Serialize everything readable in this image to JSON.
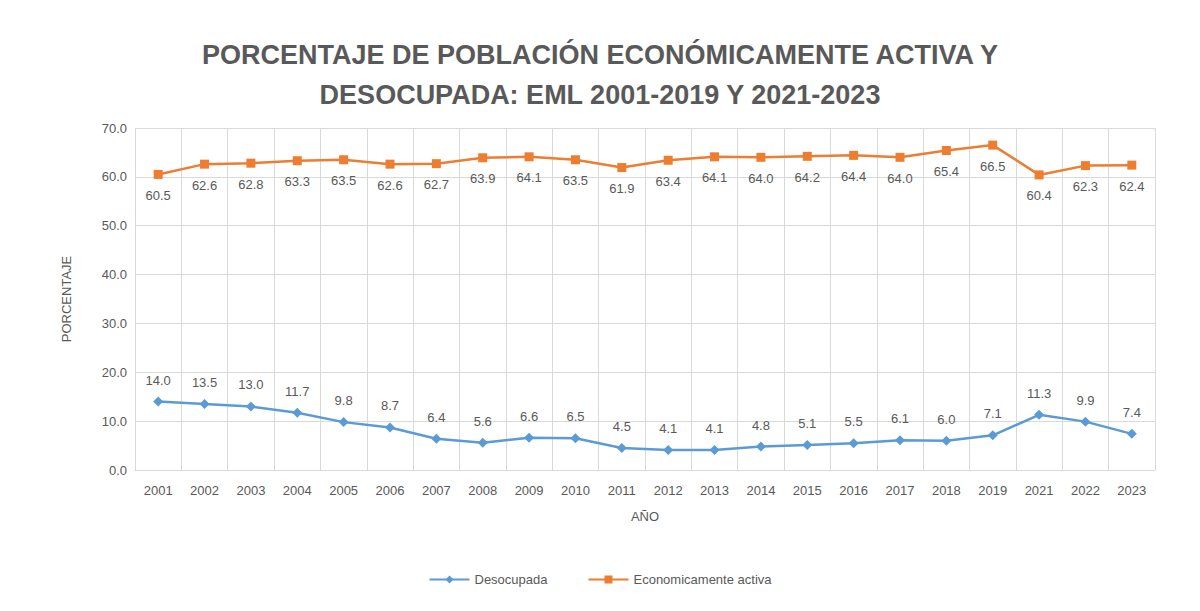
{
  "chart_data": {
    "type": "line",
    "title": "PORCENTAJE DE POBLACIÓN ECONÓMICAMENTE ACTIVA Y\nDESOCUPADA: EML 2001-2019 Y 2021-2023",
    "x_label": "AÑO",
    "y_label": "PORCENTAJE",
    "categories": [
      "2001",
      "2002",
      "2003",
      "2004",
      "2005",
      "2006",
      "2007",
      "2008",
      "2009",
      "2010",
      "2011",
      "2012",
      "2013",
      "2014",
      "2015",
      "2016",
      "2017",
      "2018",
      "2019",
      "2021",
      "2022",
      "2023"
    ],
    "series": [
      {
        "name": "Desocupada",
        "color": "#5b9bd5",
        "marker": "diamond",
        "values": [
          14.0,
          13.5,
          13.0,
          11.7,
          9.8,
          8.7,
          6.4,
          5.6,
          6.6,
          6.5,
          4.5,
          4.1,
          4.1,
          4.8,
          5.1,
          5.5,
          6.1,
          6.0,
          7.1,
          11.3,
          9.9,
          7.4
        ],
        "value_labels": [
          "14.0",
          "13.5",
          "13.0",
          "11.7",
          "9.8",
          "8.7",
          "6.4",
          "5.6",
          "6.6",
          "6.5",
          "4.5",
          "4.1",
          "4.1",
          "4.8",
          "5.1",
          "5.5",
          "6.1",
          "6.0",
          "7.1",
          "11.3",
          "9.9",
          "7.4"
        ]
      },
      {
        "name": "Economicamente activa",
        "color": "#ed7d31",
        "marker": "square",
        "values": [
          60.5,
          62.6,
          62.8,
          63.3,
          63.5,
          62.6,
          62.7,
          63.9,
          64.1,
          63.5,
          61.9,
          63.4,
          64.1,
          64.0,
          64.2,
          64.4,
          64.0,
          65.4,
          66.5,
          60.4,
          62.3,
          62.4
        ],
        "value_labels": [
          "60.5",
          "62.6",
          "62.8",
          "63.3",
          "63.5",
          "62.6",
          "62.7",
          "63.9",
          "64.1",
          "63.5",
          "61.9",
          "63.4",
          "64.1",
          "64.0",
          "64.2",
          "64.4",
          "64.0",
          "65.4",
          "66.5",
          "60.4",
          "62.3",
          "62.4"
        ]
      }
    ],
    "ylim": [
      0,
      70
    ],
    "yticks": [
      {
        "value": 0,
        "label": "0.0"
      },
      {
        "value": 10,
        "label": "10.0"
      },
      {
        "value": 20,
        "label": "20.0"
      },
      {
        "value": 30,
        "label": "30.0"
      },
      {
        "value": 40,
        "label": "40.0"
      },
      {
        "value": 50,
        "label": "50.0"
      },
      {
        "value": 60,
        "label": "60.0"
      },
      {
        "value": 70,
        "label": "70.0"
      }
    ],
    "grid": true,
    "legend": "bottom",
    "data_labels": true
  }
}
